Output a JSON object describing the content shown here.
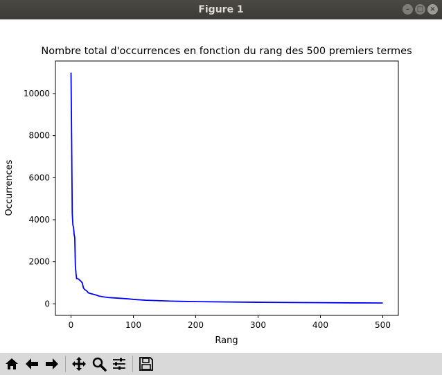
{
  "window": {
    "title": "Figure 1"
  },
  "toolbar": {
    "buttons": [
      {
        "name": "home-icon"
      },
      {
        "name": "back-arrow-icon"
      },
      {
        "name": "forward-arrow-icon"
      },
      {
        "name": "pan-icon"
      },
      {
        "name": "zoom-icon"
      },
      {
        "name": "configure-subplots-icon"
      },
      {
        "name": "save-icon"
      }
    ]
  },
  "chart_data": {
    "type": "line",
    "title": "Nombre total d'occurrences en fonction du rang des 500 premiers termes",
    "xlabel": "Rang",
    "ylabel": "Occurrences",
    "xlim": [
      -25,
      525
    ],
    "ylim": [
      -550,
      11550
    ],
    "xticks": [
      0,
      100,
      200,
      300,
      400,
      500
    ],
    "yticks": [
      0,
      2000,
      4000,
      6000,
      8000,
      10000
    ],
    "grid": false,
    "color": "#0000ff",
    "series": [
      {
        "x": [
          0,
          1,
          2,
          3,
          4,
          5,
          6,
          7,
          8,
          9,
          10,
          12,
          15,
          18,
          20,
          22,
          25,
          28,
          30,
          35,
          40,
          45,
          50,
          60,
          70,
          80,
          90,
          100,
          120,
          140,
          160,
          180,
          200,
          250,
          300,
          350,
          400,
          450,
          500
        ],
        "y": [
          11000,
          7800,
          4300,
          3750,
          3650,
          3300,
          3150,
          1800,
          1450,
          1200,
          1200,
          1180,
          1100,
          1000,
          750,
          680,
          620,
          520,
          500,
          460,
          420,
          370,
          340,
          300,
          280,
          260,
          240,
          210,
          170,
          150,
          130,
          115,
          105,
          90,
          75,
          65,
          55,
          45,
          40
        ]
      }
    ]
  }
}
